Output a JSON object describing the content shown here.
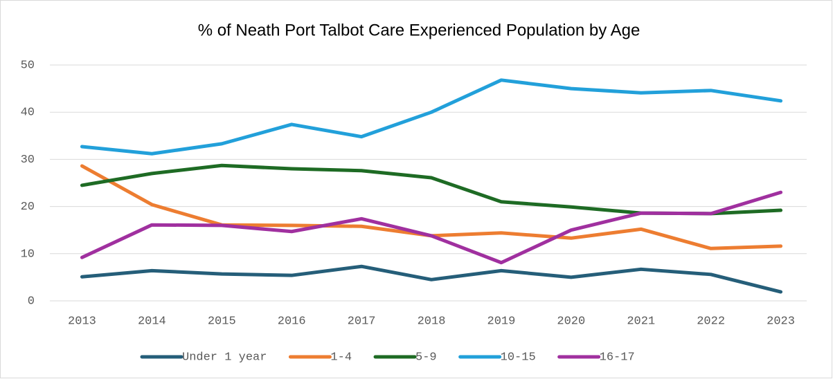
{
  "chart_data": {
    "type": "line",
    "title": "% of Neath Port Talbot Care Experienced Population by Age",
    "categories": [
      "2013",
      "2014",
      "2015",
      "2016",
      "2017",
      "2018",
      "2019",
      "2020",
      "2021",
      "2022",
      "2023"
    ],
    "ylim": [
      0,
      50
    ],
    "yticks": [
      0,
      10,
      20,
      30,
      40,
      50
    ],
    "grid": true,
    "legend": "bottom",
    "series": [
      {
        "name": "Under 1 year",
        "color": "#255e79",
        "values": [
          5.1,
          6.4,
          5.7,
          5.4,
          7.3,
          4.5,
          6.4,
          5.0,
          6.7,
          5.6,
          1.9
        ]
      },
      {
        "name": "1-4",
        "color": "#ed7d31",
        "values": [
          28.6,
          20.4,
          16.1,
          16.0,
          15.8,
          13.8,
          14.4,
          13.3,
          15.2,
          11.1,
          11.6
        ]
      },
      {
        "name": "5-9",
        "color": "#1e6b24",
        "values": [
          24.5,
          27.0,
          28.7,
          28.0,
          27.6,
          26.1,
          21.0,
          19.9,
          18.6,
          18.5,
          19.2
        ]
      },
      {
        "name": "10-15",
        "color": "#22a0da",
        "values": [
          32.7,
          31.2,
          33.3,
          37.4,
          34.8,
          40.0,
          46.8,
          45.0,
          44.1,
          44.6,
          42.4
        ]
      },
      {
        "name": "16-17",
        "color": "#a0309f",
        "values": [
          9.2,
          16.1,
          16.0,
          14.7,
          17.4,
          13.8,
          8.1,
          15.0,
          18.6,
          18.5,
          23.0
        ]
      }
    ]
  }
}
